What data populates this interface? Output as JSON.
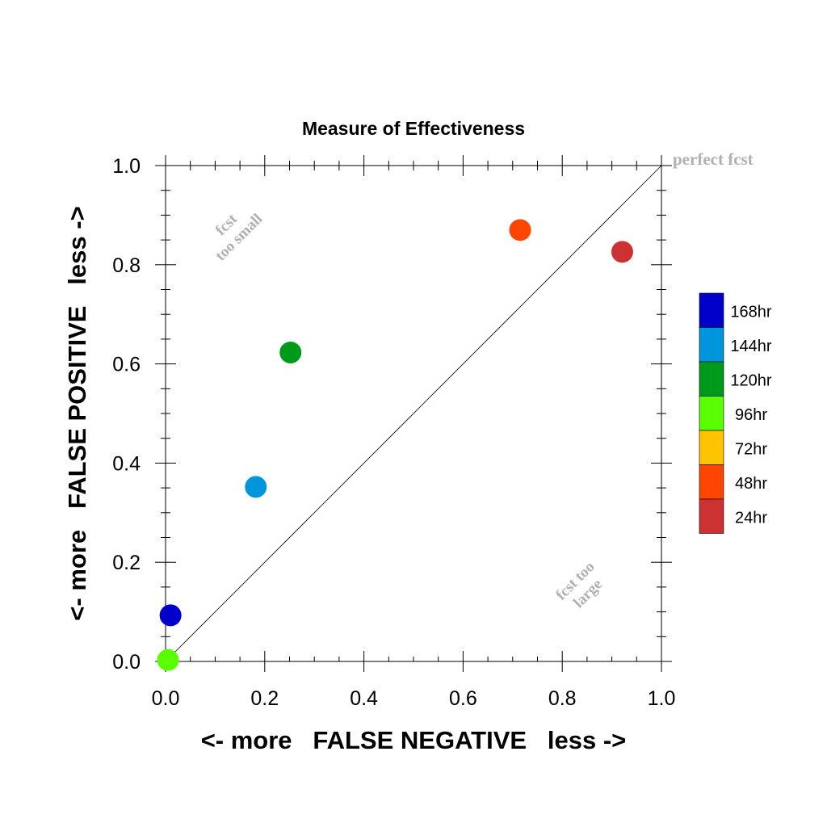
{
  "chart_data": {
    "type": "scatter",
    "title": "Measure of Effectiveness",
    "xlabel": "<- more   FALSE NEGATIVE   less ->",
    "ylabel": "<- more   FALSE POSITIVE   less ->",
    "xlim": [
      0,
      1
    ],
    "ylim": [
      0,
      1
    ],
    "grid": false,
    "legend_placement": "right",
    "x_ticks": [
      "0.0",
      "0.2",
      "0.4",
      "0.6",
      "0.8",
      "1.0"
    ],
    "y_ticks": [
      "0.0",
      "0.2",
      "0.4",
      "0.6",
      "0.8",
      "1.0"
    ],
    "reference_line": {
      "from": [
        0,
        0
      ],
      "to": [
        1,
        1
      ]
    },
    "annotations": {
      "perfect": "perfect fcst",
      "small_line1": "fcst",
      "small_line2": "too small",
      "large_line1": "fcst too",
      "large_line2": "large",
      "color": "#b0b0b0"
    },
    "series": [
      {
        "name": "168hr",
        "color": "#0000c8",
        "x": 0.01,
        "y": 0.093
      },
      {
        "name": "144hr",
        "color": "#0096dc",
        "x": 0.182,
        "y": 0.352
      },
      {
        "name": "120hr",
        "color": "#009a1a",
        "x": 0.252,
        "y": 0.623
      },
      {
        "name": "96hr",
        "color": "#5aff00",
        "x": 0.005,
        "y": 0.003
      },
      {
        "name": "72hr",
        "color": "#ffc300",
        "x": null,
        "y": null
      },
      {
        "name": "48hr",
        "color": "#ff4600",
        "x": 0.715,
        "y": 0.87
      },
      {
        "name": "24hr",
        "color": "#cd3232",
        "x": 0.921,
        "y": 0.826
      }
    ]
  }
}
